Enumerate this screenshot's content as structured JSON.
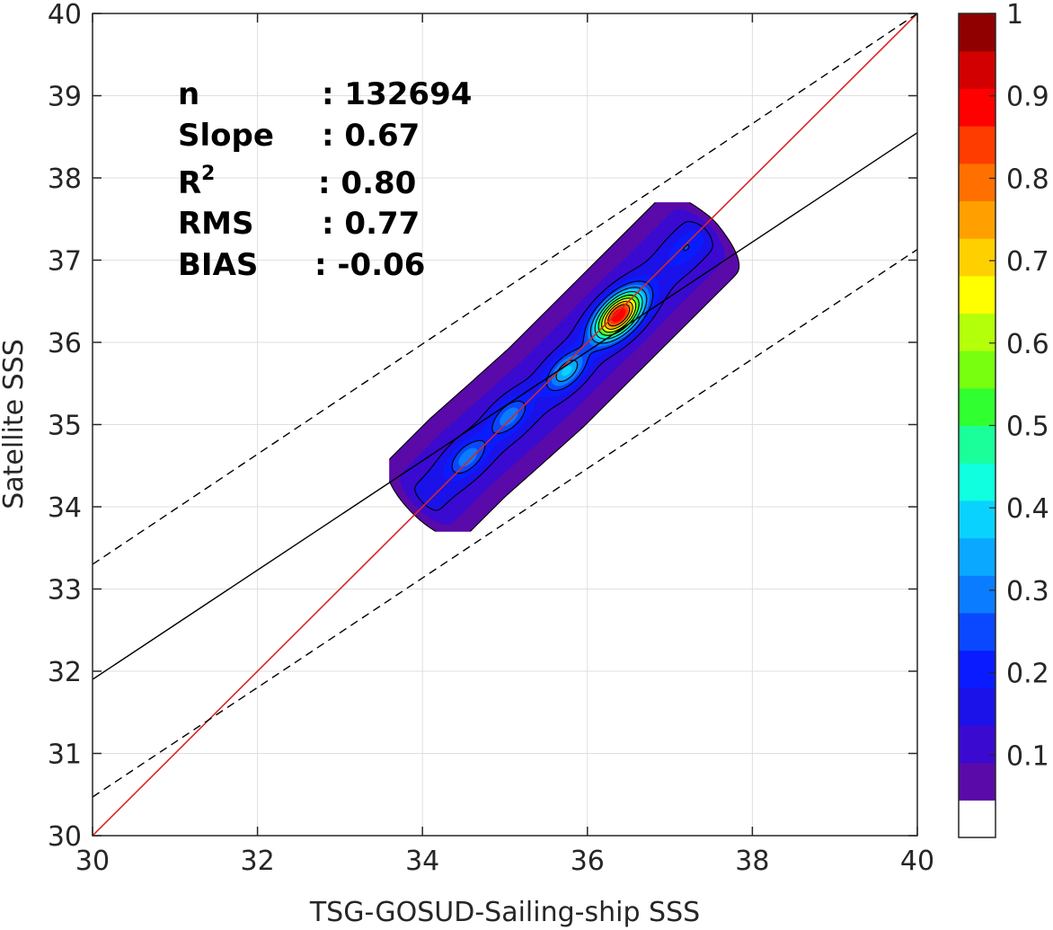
{
  "chart_data": {
    "type": "contour",
    "xlabel": "TSG-GOSUD-Sailing-ship SSS",
    "ylabel": "Satellite SSS",
    "xlim": [
      30,
      40
    ],
    "ylim": [
      30,
      40
    ],
    "xticks": [
      30,
      32,
      34,
      36,
      38,
      40
    ],
    "yticks": [
      30,
      31,
      32,
      33,
      34,
      35,
      36,
      37,
      38,
      39,
      40
    ],
    "grid": true,
    "stats": [
      {
        "label": "n",
        "value": ": 132694"
      },
      {
        "label": "Slope",
        "value": ": 0.67"
      },
      {
        "label": "R",
        "sup": "2",
        "value": ": 0.80"
      },
      {
        "label": "RMS",
        "value": ": 0.77"
      },
      {
        "label": "BIAS",
        "value": ": -0.06"
      }
    ],
    "lines": [
      {
        "kind": "one-to-one",
        "color": "#d62728",
        "points": [
          [
            30,
            30
          ],
          [
            40,
            40
          ]
        ]
      },
      {
        "kind": "regression",
        "color": "#000000",
        "style": "solid",
        "points": [
          [
            30,
            31.9
          ],
          [
            40,
            38.55
          ]
        ]
      },
      {
        "kind": "regression-upper",
        "color": "#000000",
        "style": "dashed",
        "points": [
          [
            30,
            33.3
          ],
          [
            40,
            40
          ]
        ]
      },
      {
        "kind": "regression-lower",
        "color": "#000000",
        "style": "dashed",
        "points": [
          [
            30,
            30.47
          ],
          [
            40,
            37.13
          ]
        ]
      }
    ],
    "density": {
      "note": "normalized data density contours",
      "peak": [
        36.38,
        36.33
      ],
      "ridge": [
        {
          "x": 34.1,
          "y": 34.15
        },
        {
          "x": 34.55,
          "y": 34.6
        },
        {
          "x": 35.0,
          "y": 35.0
        },
        {
          "x": 35.5,
          "y": 35.45
        },
        {
          "x": 35.9,
          "y": 35.85
        },
        {
          "x": 36.25,
          "y": 36.2
        },
        {
          "x": 36.6,
          "y": 36.55
        },
        {
          "x": 37.05,
          "y": 37.0
        },
        {
          "x": 37.3,
          "y": 37.25
        }
      ],
      "width": 0.42,
      "secondary_peaks": [
        {
          "x": 35.75,
          "y": 35.65,
          "level": 0.45
        },
        {
          "x": 34.55,
          "y": 34.6,
          "level": 0.3
        },
        {
          "x": 35.05,
          "y": 35.1,
          "level": 0.3
        },
        {
          "x": 37.2,
          "y": 37.15,
          "level": 0.15
        }
      ]
    },
    "colorbar": {
      "min": 0,
      "max": 1,
      "ticks": [
        "0.1",
        "0.2",
        "0.3",
        "0.4",
        "0.5",
        "0.6",
        "0.7",
        "0.8",
        "0.9",
        "1"
      ],
      "tick_values": [
        0.1,
        0.2,
        0.3,
        0.4,
        0.5,
        0.6,
        0.7,
        0.8,
        0.9,
        1.0
      ],
      "levels": [
        0,
        0.05,
        0.1,
        0.15,
        0.2,
        0.25,
        0.3,
        0.35,
        0.4,
        0.45,
        0.5,
        0.55,
        0.6,
        0.65,
        0.7,
        0.75,
        0.8,
        0.85,
        0.9,
        0.95,
        1.0
      ],
      "colors": [
        "#ffffff",
        "#5a0aa8",
        "#3a0ad0",
        "#1a12e8",
        "#0a1cff",
        "#0a48ff",
        "#0a7cff",
        "#0aa8ff",
        "#0ad2ff",
        "#10ffe0",
        "#1aff9a",
        "#30ff30",
        "#78ff10",
        "#b4ff0a",
        "#ffff00",
        "#ffd000",
        "#ffa000",
        "#ff7000",
        "#ff3c00",
        "#ff0000",
        "#d20000",
        "#900000"
      ]
    }
  }
}
